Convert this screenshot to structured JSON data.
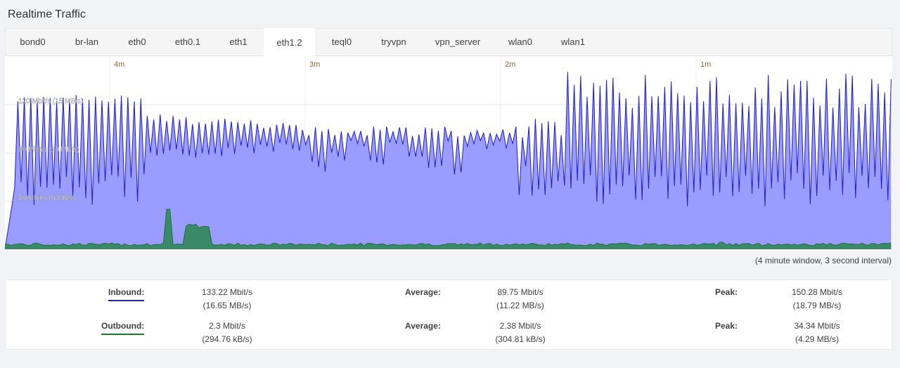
{
  "title": "Realtime Traffic",
  "tabs": [
    {
      "label": "bond0"
    },
    {
      "label": "br-lan"
    },
    {
      "label": "eth0"
    },
    {
      "label": "eth0.1"
    },
    {
      "label": "eth1"
    },
    {
      "label": "eth1.2",
      "active": true
    },
    {
      "label": "teql0"
    },
    {
      "label": "tryvpn"
    },
    {
      "label": "vpn_server"
    },
    {
      "label": "wlan0"
    },
    {
      "label": "wlan1"
    }
  ],
  "graph": {
    "time_labels": [
      "4m",
      "3m",
      "2m",
      "1m"
    ],
    "scale_labels": [
      "120 Mbit/s (15 MB/s)",
      "80 Mbit/s (10 MB/s)",
      "40 Mbit/s (5 MB/s)"
    ],
    "colors": {
      "inbound_fill": "#9a9cff",
      "inbound_line": "#1c1cd0",
      "outbound_fill": "#3a8a6a",
      "outbound_line": "#1a6e3a"
    },
    "window_note": "(4 minute window, 3 second interval)"
  },
  "stats": {
    "inbound": {
      "label": "Inbound:",
      "current": "133.22 Mbit/s",
      "current_bytes": "(16.65 MB/s)",
      "average_label": "Average:",
      "average": "89.75 Mbit/s",
      "average_bytes": "(11.22 MB/s)",
      "peak_label": "Peak:",
      "peak": "150.28 Mbit/s",
      "peak_bytes": "(18.79 MB/s)"
    },
    "outbound": {
      "label": "Outbound:",
      "current": "2.3 Mbit/s",
      "current_bytes": "(294.76 kB/s)",
      "average_label": "Average:",
      "average": "2.38 Mbit/s",
      "average_bytes": "(304.81 kB/s)",
      "peak_label": "Peak:",
      "peak": "34.34 Mbit/s",
      "peak_bytes": "(4.29 MB/s)"
    }
  }
}
